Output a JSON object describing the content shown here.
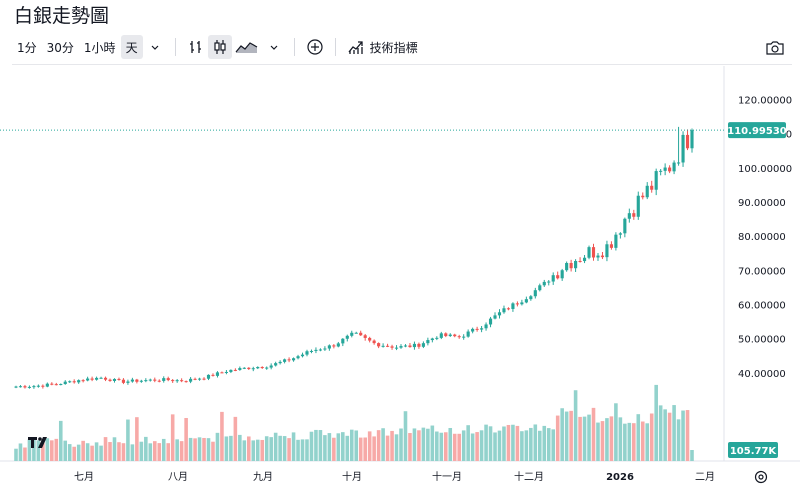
{
  "title": "白銀走勢圖",
  "toolbar": {
    "intervals": [
      "1分",
      "30分",
      "1小時",
      "天"
    ],
    "active_interval": "天",
    "indicators_label": "技術指標"
  },
  "icons": [
    "chevron-down-icon",
    "bar-style-icon",
    "candlestick-icon",
    "area-chart-icon",
    "add-compare-icon",
    "indicators-icon",
    "camera-icon",
    "settings-icon",
    "tradingview-logo"
  ],
  "colors": {
    "up": "#26a69a",
    "down": "#ef5350",
    "up_vol": "#92d2cc",
    "down_vol": "#f7a9a7",
    "last_price": "#26a69a"
  },
  "price_axis": {
    "ticks": [
      "120.00000",
      "110.00000",
      "100.00000",
      "90.00000",
      "80.00000",
      "70.00000",
      "60.00000",
      "50.00000",
      "40.00000"
    ]
  },
  "last_price_label": "110.99530",
  "last_volume_label": "105.77K",
  "chart_data": {
    "type": "candlestick",
    "title": "",
    "y_range": [
      30.6,
      124.5
    ],
    "month_labels": [
      "七月",
      "八月",
      "九月",
      "十月",
      "十一月",
      "十二月",
      "2026",
      "二月"
    ],
    "last_close": 110.9953,
    "last_volume": "105.77K",
    "grid": false,
    "series": [
      {
        "x": "2025-06-24",
        "c": 36.0
      },
      {
        "x": "2025-07-01",
        "c": 36.2
      },
      {
        "x": "2025-07-08",
        "c": 36.8
      },
      {
        "x": "2025-07-15",
        "c": 37.9
      },
      {
        "x": "2025-07-22",
        "c": 38.6
      },
      {
        "x": "2025-07-29",
        "c": 37.4
      },
      {
        "x": "2025-08-05",
        "c": 37.8
      },
      {
        "x": "2025-08-12",
        "c": 38.0
      },
      {
        "x": "2025-08-19",
        "c": 37.7
      },
      {
        "x": "2025-08-26",
        "c": 38.8
      },
      {
        "x": "2025-09-02",
        "c": 40.6
      },
      {
        "x": "2025-09-09",
        "c": 41.5
      },
      {
        "x": "2025-09-16",
        "c": 42.1
      },
      {
        "x": "2025-09-23",
        "c": 44.0
      },
      {
        "x": "2025-09-30",
        "c": 46.5
      },
      {
        "x": "2025-10-07",
        "c": 48.0
      },
      {
        "x": "2025-10-14",
        "c": 51.5
      },
      {
        "x": "2025-10-21",
        "c": 48.5
      },
      {
        "x": "2025-10-28",
        "c": 47.5
      },
      {
        "x": "2025-11-04",
        "c": 48.0
      },
      {
        "x": "2025-11-11",
        "c": 51.0
      },
      {
        "x": "2025-11-18",
        "c": 50.5
      },
      {
        "x": "2025-11-25",
        "c": 53.5
      },
      {
        "x": "2025-12-02",
        "c": 58.0
      },
      {
        "x": "2025-12-09",
        "c": 61.5
      },
      {
        "x": "2025-12-16",
        "c": 66.0
      },
      {
        "x": "2025-12-23",
        "c": 72.0
      },
      {
        "x": "2025-12-30",
        "c": 75.0
      },
      {
        "x": "2026-01-06",
        "c": 77.0
      },
      {
        "x": "2026-01-13",
        "c": 87.0
      },
      {
        "x": "2026-01-20",
        "c": 94.0
      },
      {
        "x": "2026-01-27",
        "c": 101.0
      },
      {
        "x": "2026-01-30",
        "c": 110.9953
      }
    ]
  }
}
